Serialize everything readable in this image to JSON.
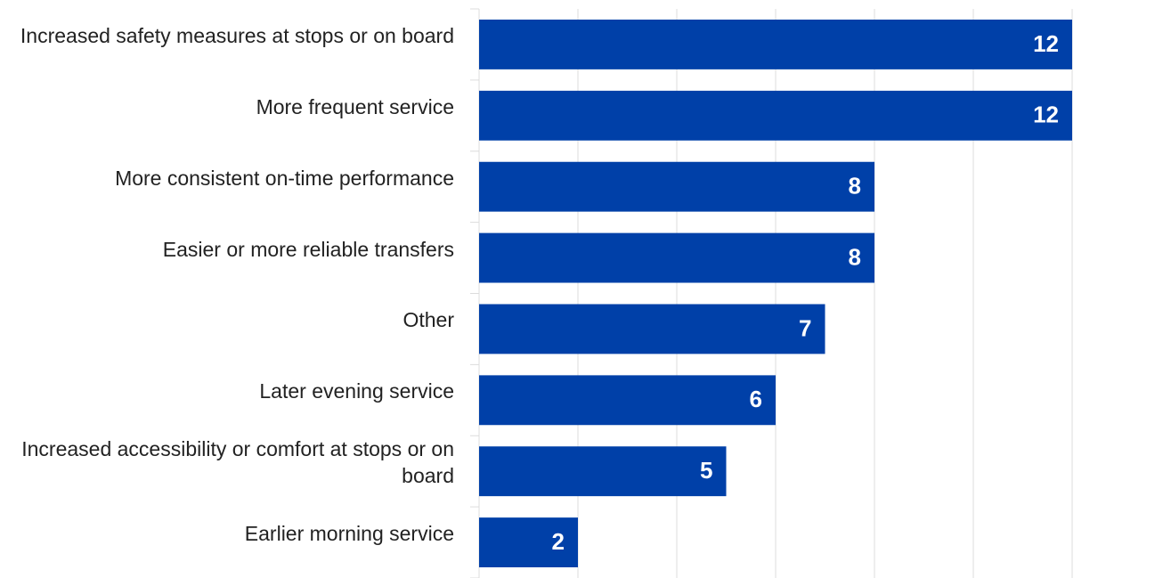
{
  "chart_data": {
    "type": "barh",
    "categories": [
      "Increased safety measures at stops or on board",
      "More frequent service",
      "More consistent on-time performance",
      "Easier or more reliable transfers",
      "Other",
      "Later evening service",
      "Increased accessibility or comfort at stops or on board",
      "Earlier morning service"
    ],
    "values": [
      12,
      12,
      8,
      8,
      7,
      6,
      5,
      2
    ],
    "color": "#0040a8",
    "xlim": [
      0,
      14
    ],
    "xticks": [
      0,
      2,
      4,
      6,
      8,
      10,
      12
    ],
    "grid": true
  }
}
